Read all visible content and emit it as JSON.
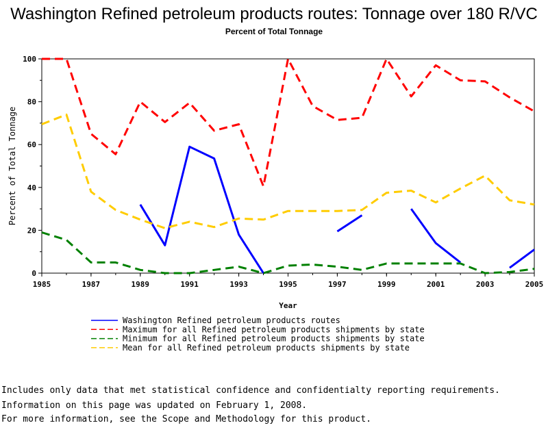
{
  "chart_data": {
    "type": "line",
    "title": "Washington Refined petroleum products routes: Tonnage over 180 R/VC",
    "subtitle": "Percent of Total Tonnage",
    "xlabel": "Year",
    "ylabel": "Percent of Total Tonnage",
    "xlim": [
      1985,
      2005
    ],
    "ylim": [
      0,
      100
    ],
    "x_ticks": [
      "1985",
      "1987",
      "1989",
      "1991",
      "1993",
      "1995",
      "1997",
      "1999",
      "2001",
      "2003",
      "2005"
    ],
    "y_ticks": [
      "0",
      "20",
      "40",
      "60",
      "80",
      "100"
    ],
    "x": [
      1985,
      1986,
      1987,
      1988,
      1989,
      1990,
      1991,
      1992,
      1993,
      1994,
      1995,
      1996,
      1997,
      1998,
      1999,
      2000,
      2001,
      2002,
      2003,
      2004,
      2005
    ],
    "series": [
      {
        "name": "Washington Refined petroleum products routes",
        "color": "#0000ff",
        "style": "solid",
        "values": [
          null,
          null,
          null,
          null,
          32,
          13,
          59,
          53.5,
          18,
          0,
          null,
          null,
          19.5,
          27,
          null,
          30,
          14,
          5,
          null,
          2.5,
          11
        ]
      },
      {
        "name": "Maximum for all Refined petroleum products shipments by state",
        "color": "#ff0000",
        "style": "dashed",
        "values": [
          100,
          100,
          65,
          55.5,
          80,
          70.5,
          79.5,
          66.5,
          69.5,
          40.5,
          100,
          78,
          71.5,
          72.5,
          100,
          82.5,
          97,
          90,
          89.5,
          82,
          75.5
        ]
      },
      {
        "name": "Minimum for all Refined petroleum products shipments by state",
        "color": "#008000",
        "style": "dashed",
        "values": [
          19,
          15.5,
          5,
          5,
          1.5,
          0,
          0,
          1.5,
          3,
          0,
          3.5,
          4,
          3,
          1.5,
          4.5,
          4.5,
          4.5,
          4.5,
          0,
          0.5,
          2
        ]
      },
      {
        "name": "Mean for all Refined petroleum products shipments by state",
        "color": "#ffcc00",
        "style": "dashed",
        "values": [
          69.5,
          74,
          38,
          29.5,
          25,
          21,
          24,
          21.5,
          25.5,
          25,
          29,
          29,
          29,
          29.5,
          37.5,
          38.5,
          33,
          39.5,
          45.5,
          34,
          32
        ]
      }
    ],
    "grid": false,
    "legend": "bottom-center"
  },
  "footnotes": [
    "Includes only data that met statistical confidence and confidentialty reporting requirements.",
    "For more information, see the Scope and Methodology for this product."
  ],
  "updated": "Information on this page was updated on February 1, 2008."
}
